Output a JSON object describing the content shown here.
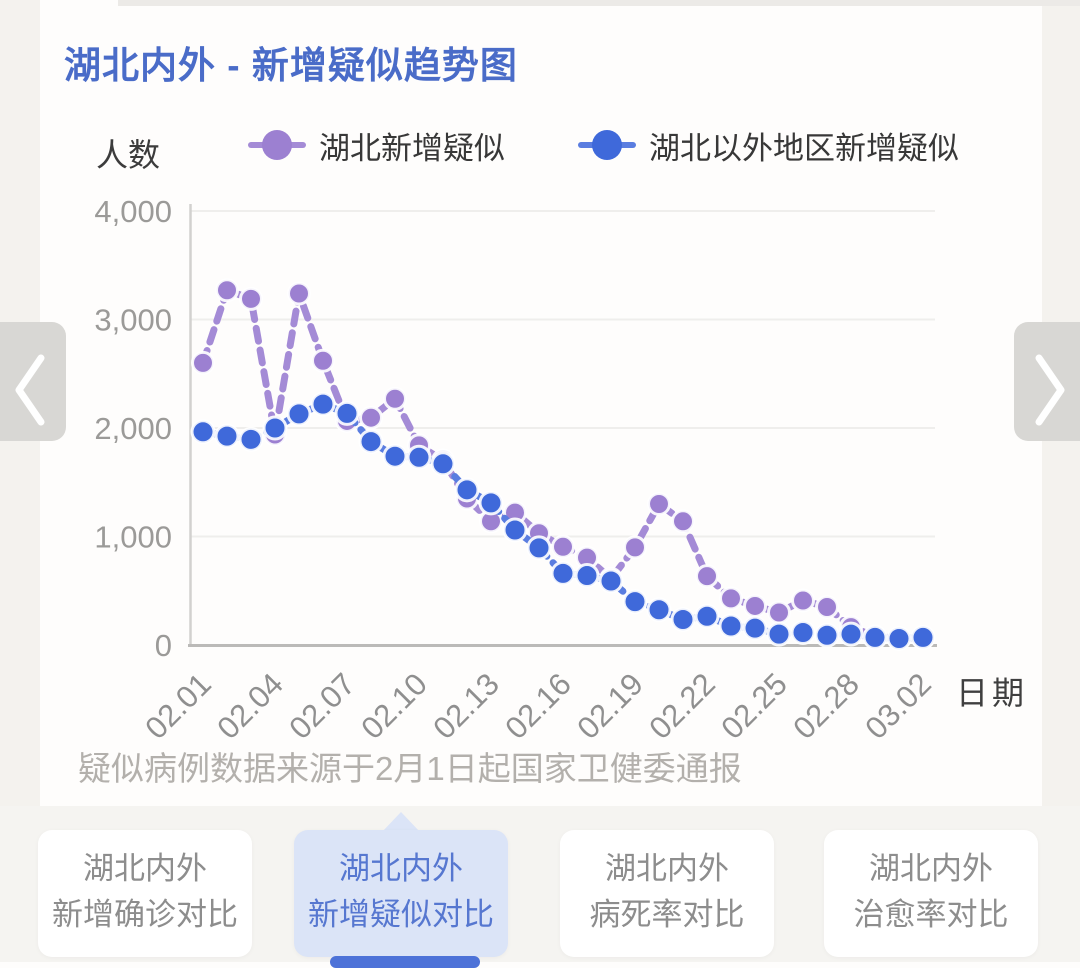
{
  "page": {
    "title": "湖北内外 - 新增疑似趋势图",
    "source_note": "疑似病例数据来源于2月1日起国家卫健委通报"
  },
  "colors": {
    "title": "#4a6cc8",
    "accent": "#4d72d8",
    "active_tab_bg": "#dbe4f7",
    "active_tab_text": "#5677d0"
  },
  "carousel": {
    "prev_icon": "chevron-left",
    "next_icon": "chevron-right"
  },
  "chart_data": {
    "type": "line",
    "title": "湖北内外 - 新增疑似趋势图",
    "ylabel": "人数",
    "xlabel": "日期",
    "ylim": [
      0,
      4000
    ],
    "grid": true,
    "legend_position": "top",
    "y_tick_values": [
      0,
      1000,
      2000,
      3000,
      4000
    ],
    "y_tick_labels": [
      "0",
      "1,000",
      "2,000",
      "3,000",
      "4,000"
    ],
    "x": [
      "02.01",
      "02.02",
      "02.03",
      "02.04",
      "02.05",
      "02.06",
      "02.07",
      "02.08",
      "02.09",
      "02.10",
      "02.11",
      "02.12",
      "02.13",
      "02.14",
      "02.15",
      "02.16",
      "02.17",
      "02.18",
      "02.19",
      "02.20",
      "02.21",
      "02.22",
      "02.23",
      "02.24",
      "02.25",
      "02.26",
      "02.27",
      "02.28",
      "02.29",
      "03.01",
      "03.02"
    ],
    "x_tick_labels": [
      "02.01",
      "02.04",
      "02.07",
      "02.10",
      "02.13",
      "02.16",
      "02.19",
      "02.22",
      "02.25",
      "02.28",
      "03.02"
    ],
    "series": [
      {
        "name": "湖北新增疑似",
        "color": "#9c80d1",
        "line_color": "#a48bd6",
        "values": [
          2600,
          3270,
          3190,
          1940,
          3240,
          2620,
          2065,
          2095,
          2270,
          1840,
          1700,
          1350,
          1140,
          1220,
          1030,
          905,
          805,
          610,
          900,
          1300,
          1140,
          635,
          430,
          360,
          300,
          410,
          350,
          165,
          80,
          60,
          65
        ]
      },
      {
        "name": "湖北以外地区新增疑似",
        "color": "#3f69da",
        "line_color": "#5a7de0",
        "values": [
          1965,
          1925,
          1895,
          2000,
          2130,
          2220,
          2135,
          1875,
          1740,
          1730,
          1670,
          1430,
          1310,
          1060,
          895,
          660,
          640,
          590,
          400,
          325,
          235,
          265,
          175,
          155,
          100,
          115,
          90,
          100,
          70,
          60,
          70
        ]
      }
    ]
  },
  "tabs": [
    {
      "line1": "湖北内外",
      "line2": "新增确诊对比",
      "active": false
    },
    {
      "line1": "湖北内外",
      "line2": "新增疑似对比",
      "active": true
    },
    {
      "line1": "湖北内外",
      "line2": "病死率对比",
      "active": false
    },
    {
      "line1": "湖北内外",
      "line2": "治愈率对比",
      "active": false
    }
  ]
}
